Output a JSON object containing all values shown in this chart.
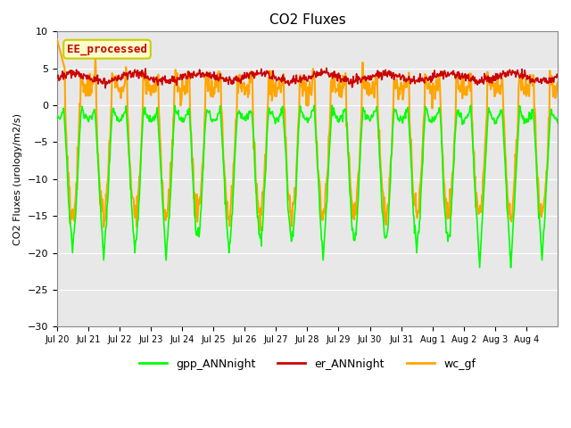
{
  "title": "CO2 Fluxes",
  "ylabel": "CO2 Fluxes (urology/m2/s)",
  "xlabel": "",
  "ylim": [
    -30,
    10
  ],
  "background_color": "#e8e8e8",
  "fig_bg_color": "#ffffff",
  "grid_color": "#ffffff",
  "annotation_text": "EE_processed",
  "annotation_bg": "#ffffcc",
  "annotation_edge": "#cccc00",
  "annotation_text_color": "#cc0000",
  "legend_entries": [
    "gpp_ANNnight",
    "er_ANNnight",
    "wc_gf"
  ],
  "line_colors": {
    "gpp_ANNnight": "#00ff00",
    "er_ANNnight": "#cc0000",
    "wc_gf": "#ffa500"
  },
  "line_widths": {
    "gpp_ANNnight": 1.2,
    "er_ANNnight": 1.2,
    "wc_gf": 1.5
  },
  "n_points": 900,
  "n_days": 16,
  "tick_labels": [
    "Jul 20",
    "Jul 21",
    "Jul 22",
    "Jul 23",
    "Jul 24",
    "Jul 25",
    "Jul 26",
    "Jul 27",
    "Jul 28",
    "Jul 29",
    "Jul 30",
    "Jul 31",
    "Aug 1",
    "Aug 2",
    "Aug 3",
    "Aug 4"
  ],
  "yticks": [
    10,
    5,
    0,
    -5,
    -10,
    -15,
    -20,
    -25,
    -30
  ]
}
